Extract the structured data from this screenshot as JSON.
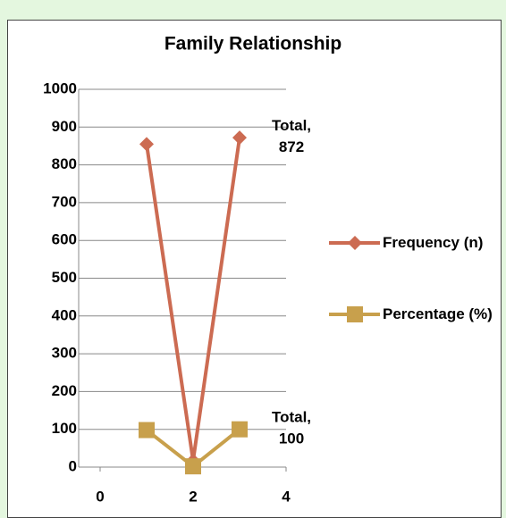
{
  "chart_data": {
    "type": "line",
    "title": "Family Relationship",
    "x": [
      1,
      2,
      3
    ],
    "series": [
      {
        "name": "Frequency (n)",
        "color": "#cc6b52",
        "marker": "diamond",
        "values": [
          855,
          17,
          872
        ],
        "value_labels": [
          null,
          null,
          "Total, 872"
        ]
      },
      {
        "name": "Percentage (%)",
        "color": "#c8a04c",
        "marker": "square",
        "values": [
          98,
          2,
          100
        ],
        "value_labels": [
          null,
          null,
          "Total, 100"
        ]
      }
    ],
    "xlim": [
      0,
      4
    ],
    "xticks": [
      0,
      2,
      4
    ],
    "ylim": [
      0,
      1000
    ],
    "yticks": [
      0,
      100,
      200,
      300,
      400,
      500,
      600,
      700,
      800,
      900,
      1000
    ],
    "grid": true,
    "legend": "right"
  }
}
